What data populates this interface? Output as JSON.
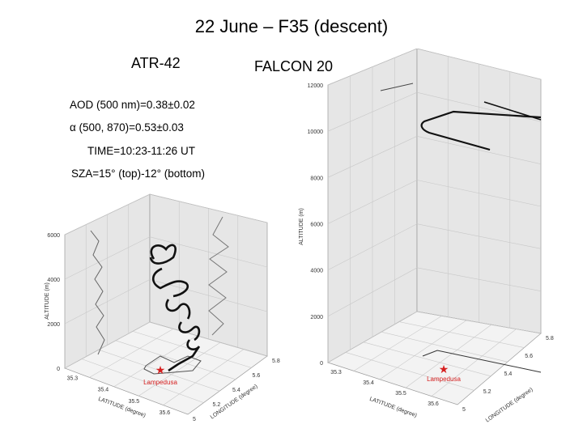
{
  "slide": {
    "title": "22 June – F35 (descent)",
    "left_label": "ATR-42",
    "right_label": "FALCON 20",
    "info": [
      "AOD (500 nm)=0.38±0.02",
      "α (500, 870)=0.53±0.03",
      "TIME=10:23-11:26 UT",
      "SZA=15° (top)-12° (bottom)"
    ]
  },
  "chart_data": [
    {
      "type": "line",
      "title": "ATR-42",
      "zlabel": "ALTITUDE (m)",
      "xlabel": "LATITUDE (degree)",
      "ylabel": "LONGITUDE (degree)",
      "z_ticks": [
        "0",
        "2000",
        "4000",
        "6000"
      ],
      "x_ticks": [
        "35.3",
        "35.4",
        "35.5",
        "35.6"
      ],
      "y_ticks": [
        "5",
        "5.2",
        "5.4",
        "5.6",
        "5.8"
      ],
      "zlim": [
        0,
        6000
      ],
      "marker": {
        "label": "Lampedusa",
        "symbol": "star",
        "color": "#d62020"
      },
      "series": [
        {
          "z": [
            6000,
            5600,
            5200,
            4800,
            4400,
            4000,
            3600,
            3200,
            2800,
            2400,
            2000,
            1600,
            1200,
            800,
            400,
            0
          ]
        }
      ]
    },
    {
      "type": "line",
      "title": "FALCON 20",
      "zlabel": "ALTITUDE (m)",
      "xlabel": "LATITUDE (degree)",
      "ylabel": "LONGITUDE (degree)",
      "z_ticks": [
        "0",
        "2000",
        "4000",
        "6000",
        "8000",
        "10000",
        "12000"
      ],
      "x_ticks": [
        "35.3",
        "35.4",
        "35.5",
        "35.6"
      ],
      "y_ticks": [
        "5",
        "5.2",
        "5.4",
        "5.6",
        "5.8"
      ],
      "zlim": [
        0,
        12000
      ],
      "marker": {
        "label": "Lampedusa",
        "symbol": "star",
        "color": "#d62020"
      },
      "series": [
        {
          "z": [
            11800,
            11200,
            10800,
            10400,
            800,
            0
          ]
        }
      ]
    }
  ]
}
